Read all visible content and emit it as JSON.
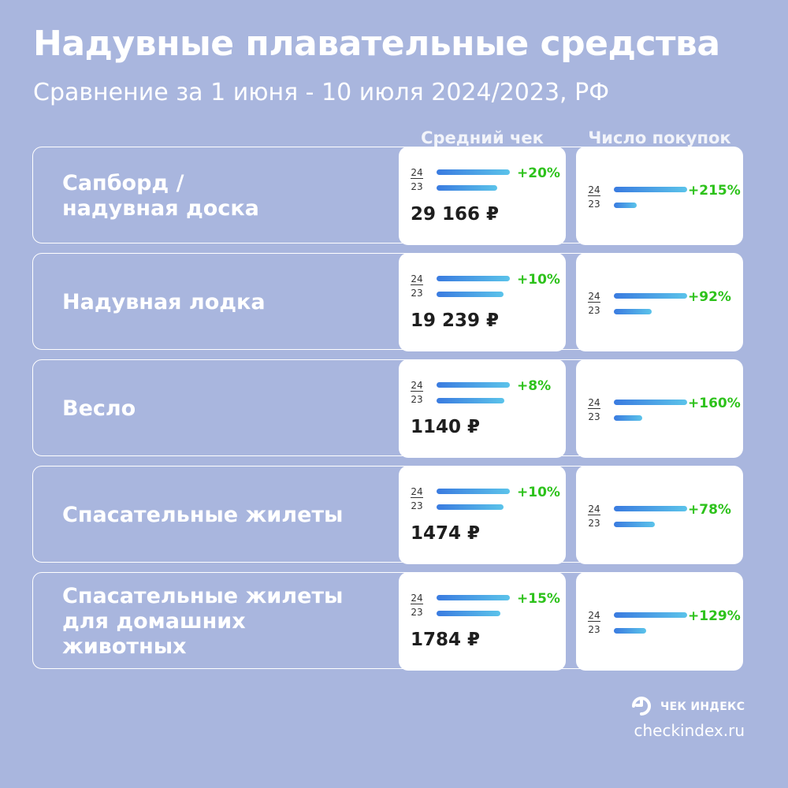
{
  "title": "Надувные плавательные средства",
  "subtitle": "Сравнение за 1 июня - 10 июля 2024/2023, РФ",
  "columns": {
    "avg_check": "Средний чек",
    "purchases": "Число покупок"
  },
  "year_labels": {
    "current": "24",
    "previous": "23"
  },
  "chart_data": {
    "type": "bar",
    "categories": [
      "Сапборд / надувная доска",
      "Надувная лодка",
      "Весло",
      "Спасательные жилеты",
      "Спасательные жилеты для домашних животных"
    ],
    "series": [
      {
        "name": "Средний чек",
        "change_pct": [
          20,
          10,
          8,
          10,
          15
        ],
        "values_2024_rub": [
          29166,
          19239,
          1140,
          1474,
          1784
        ]
      },
      {
        "name": "Число покупок",
        "change_pct": [
          215,
          92,
          160,
          78,
          129
        ]
      }
    ]
  },
  "rows": [
    {
      "label": "Сапборд /\nнадувная доска",
      "avg": {
        "pct": "+20%",
        "price": "29 166 ₽",
        "ratio": 0.833
      },
      "cnt": {
        "pct": "+215%",
        "ratio": 0.317
      }
    },
    {
      "label": "Надувная лодка",
      "avg": {
        "pct": "+10%",
        "price": "19 239 ₽",
        "ratio": 0.909
      },
      "cnt": {
        "pct": "+92%",
        "ratio": 0.521
      }
    },
    {
      "label": "Весло",
      "avg": {
        "pct": "+8%",
        "price": "1140 ₽",
        "ratio": 0.926
      },
      "cnt": {
        "pct": "+160%",
        "ratio": 0.385
      }
    },
    {
      "label": "Спасательные жилеты",
      "avg": {
        "pct": "+10%",
        "price": "1474 ₽",
        "ratio": 0.909
      },
      "cnt": {
        "pct": "+78%",
        "ratio": 0.562
      }
    },
    {
      "label": "Спасательные жилеты\nдля домашних\nживотных",
      "avg": {
        "pct": "+15%",
        "price": "1784 ₽",
        "ratio": 0.87
      },
      "cnt": {
        "pct": "+129%",
        "ratio": 0.437
      }
    }
  ],
  "brand": {
    "name": "ЧЕК ИНДЕКС",
    "site": "checkindex.ru",
    "logo_icon": "checkindex-logo-icon"
  },
  "colors": {
    "background": "#a9b6de",
    "accent_green": "#2dc21b",
    "bar_start": "#3a7be0",
    "bar_end": "#5bc3ea"
  }
}
